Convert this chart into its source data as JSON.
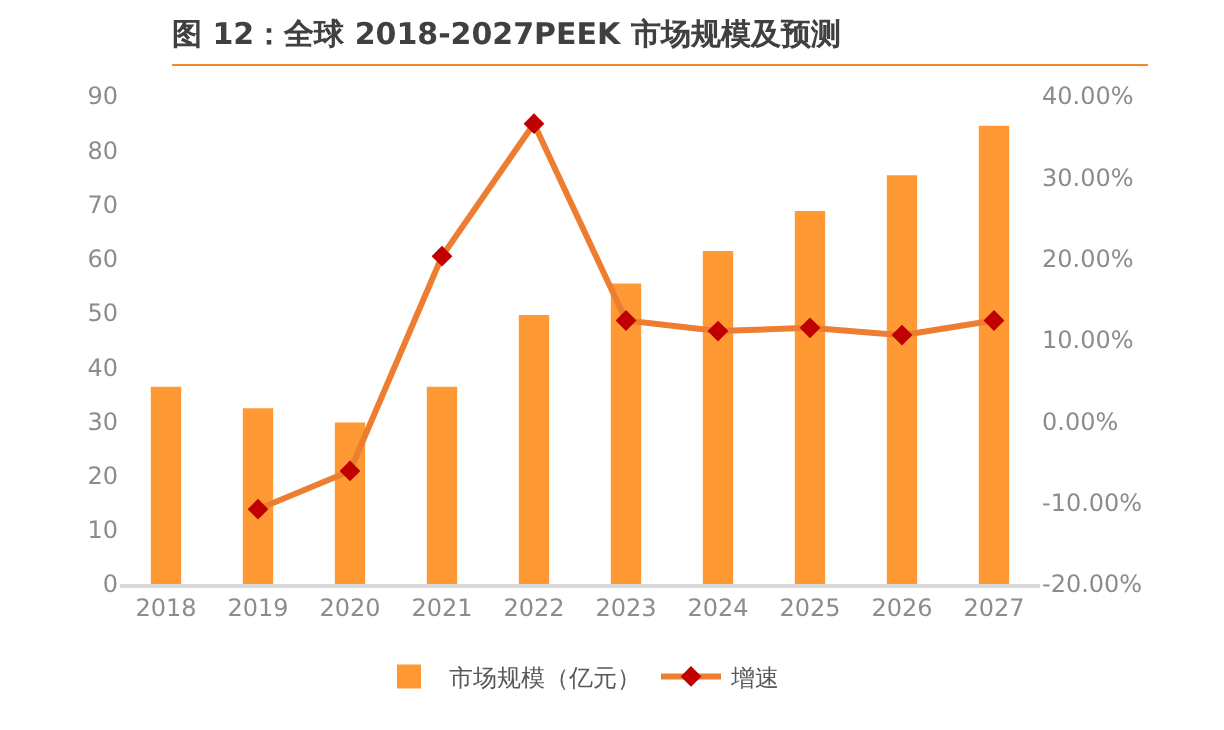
{
  "chart_data": {
    "type": "bar",
    "title": "图 12：全球 2018-2027PEEK 市场规模及预测",
    "categories": [
      "2018",
      "2019",
      "2020",
      "2021",
      "2022",
      "2023",
      "2024",
      "2025",
      "2026",
      "2027"
    ],
    "series": [
      {
        "name": "市场规模（亿元）",
        "color": "#ff9933",
        "values": [
          36.4,
          32.4,
          29.8,
          36.4,
          49.6,
          55.4,
          61.4,
          68.8,
          75.4,
          84.5
        ]
      },
      {
        "name": "增速",
        "type": "line",
        "axis": "y2",
        "color": "#ed7d31",
        "marker": "diamond",
        "values": [
          null,
          -10.8,
          -6.1,
          20.3,
          36.6,
          12.4,
          11.1,
          11.5,
          10.6,
          12.4
        ]
      }
    ],
    "ylim": [
      0,
      90
    ],
    "yticks": [
      0,
      10,
      20,
      30,
      40,
      50,
      60,
      70,
      80,
      90
    ],
    "y2lim": [
      -20,
      40
    ],
    "y2ticks": [
      {
        "value": -20,
        "label": "-20.00%"
      },
      {
        "value": -10,
        "label": "-10.00%"
      },
      {
        "value": 0,
        "label": "0.00%"
      },
      {
        "value": 10,
        "label": "10.00%"
      },
      {
        "value": 20,
        "label": "20.00%"
      },
      {
        "value": 30,
        "label": "30.00%"
      },
      {
        "value": 40,
        "label": "40.00%"
      }
    ],
    "grid": false,
    "legend": "bottom"
  }
}
